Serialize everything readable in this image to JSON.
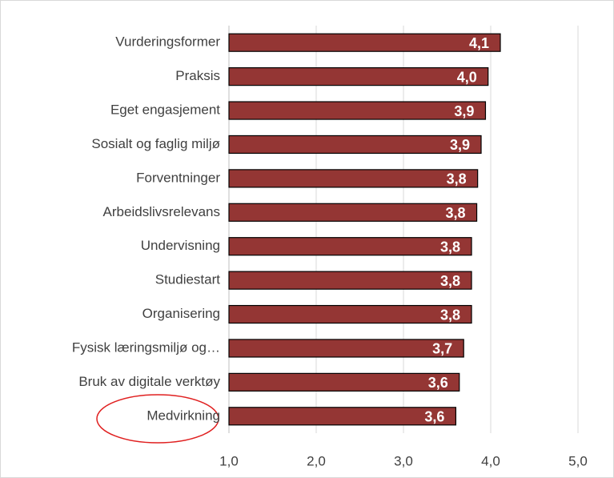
{
  "chart_data": {
    "type": "bar",
    "orientation": "horizontal",
    "categories": [
      "Vurderingsformer",
      "Praksis",
      "Eget engasjement",
      "Sosialt og faglig miljø",
      "Forventninger",
      "Arbeidslivsrelevans",
      "Undervisning",
      "Studiestart",
      "Organisering",
      "Fysisk læringsmiljø og…",
      "Bruk av digitale verktøy",
      "Medvirkning"
    ],
    "values": [
      4.11,
      3.97,
      3.94,
      3.89,
      3.85,
      3.84,
      3.78,
      3.78,
      3.78,
      3.69,
      3.64,
      3.6
    ],
    "value_labels": [
      "4,1",
      "4,0",
      "3,9",
      "3,9",
      "3,8",
      "3,8",
      "3,8",
      "3,8",
      "3,8",
      "3,7",
      "3,6",
      "3,6"
    ],
    "color": "#943634",
    "xlim": [
      1,
      5
    ],
    "xticks": [
      {
        "value": 1,
        "label": "1,0"
      },
      {
        "value": 2,
        "label": "2,0"
      },
      {
        "value": 3,
        "label": "3,0"
      },
      {
        "value": 4,
        "label": "4,0"
      },
      {
        "value": 5,
        "label": "5,0"
      }
    ],
    "grid": true
  }
}
